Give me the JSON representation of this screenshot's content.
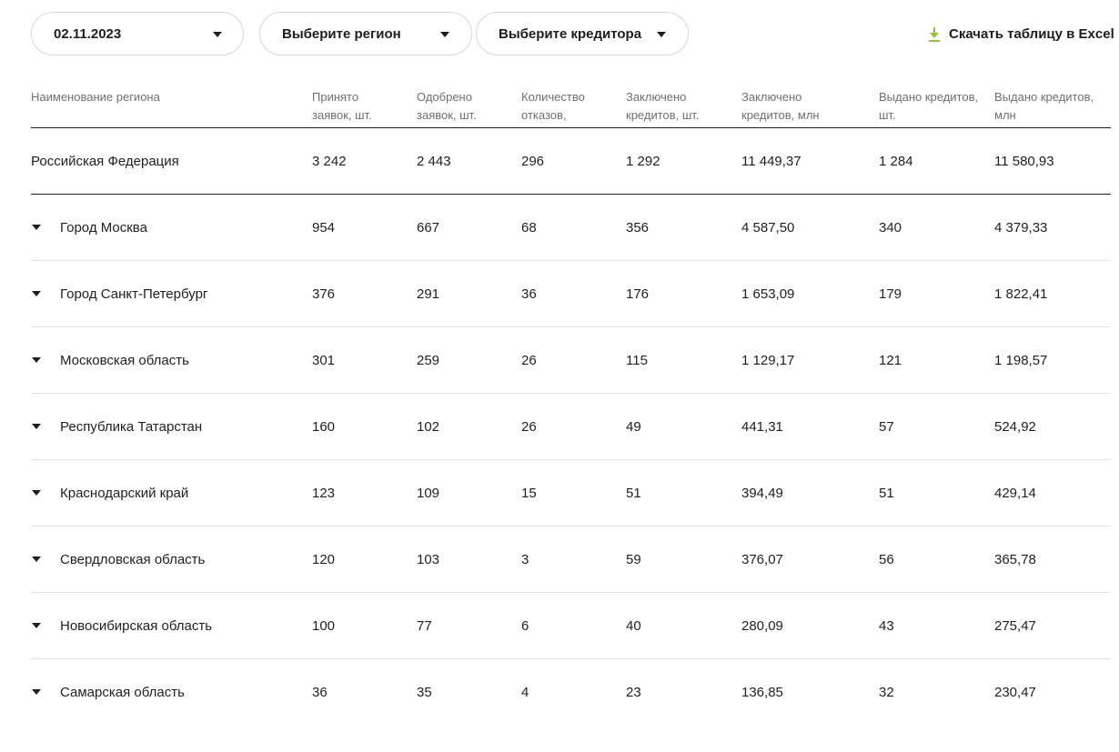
{
  "filters": {
    "date": "02.11.2023",
    "region": "Выберите регион",
    "lender": "Выберите кредитора"
  },
  "download": {
    "label": "Скачать таблицу в Excel"
  },
  "colors": {
    "accent": "#8dc63f",
    "text": "#1f1f1f",
    "muted": "#6f6f6f",
    "divider": "#e2e2e2"
  },
  "table": {
    "headers": [
      "Наименование региона",
      "Принято заявок, шт.",
      "Одобрено заявок, шт.",
      "Количество отказов,",
      "Заключено кредитов, шт.",
      "Заключено кредитов, млн",
      "Выдано кредитов, шт.",
      "Выдано кредитов, млн"
    ],
    "total": [
      "Российская Федерация",
      "3 242",
      "2 443",
      "296",
      "1 292",
      "11 449,37",
      "1 284",
      "11 580,93"
    ],
    "rows": [
      [
        "Город Москва",
        "954",
        "667",
        "68",
        "356",
        "4 587,50",
        "340",
        "4 379,33"
      ],
      [
        "Город Санкт-Петербург",
        "376",
        "291",
        "36",
        "176",
        "1 653,09",
        "179",
        "1 822,41"
      ],
      [
        "Московская область",
        "301",
        "259",
        "26",
        "115",
        "1 129,17",
        "121",
        "1 198,57"
      ],
      [
        "Республика Татарстан",
        "160",
        "102",
        "26",
        "49",
        "441,31",
        "57",
        "524,92"
      ],
      [
        "Краснодарский край",
        "123",
        "109",
        "15",
        "51",
        "394,49",
        "51",
        "429,14"
      ],
      [
        "Свердловская область",
        "120",
        "103",
        "3",
        "59",
        "376,07",
        "56",
        "365,78"
      ],
      [
        "Новосибирская область",
        "100",
        "77",
        "6",
        "40",
        "280,09",
        "43",
        "275,47"
      ],
      [
        "Самарская область",
        "36",
        "35",
        "4",
        "23",
        "136,85",
        "32",
        "230,47"
      ]
    ]
  }
}
